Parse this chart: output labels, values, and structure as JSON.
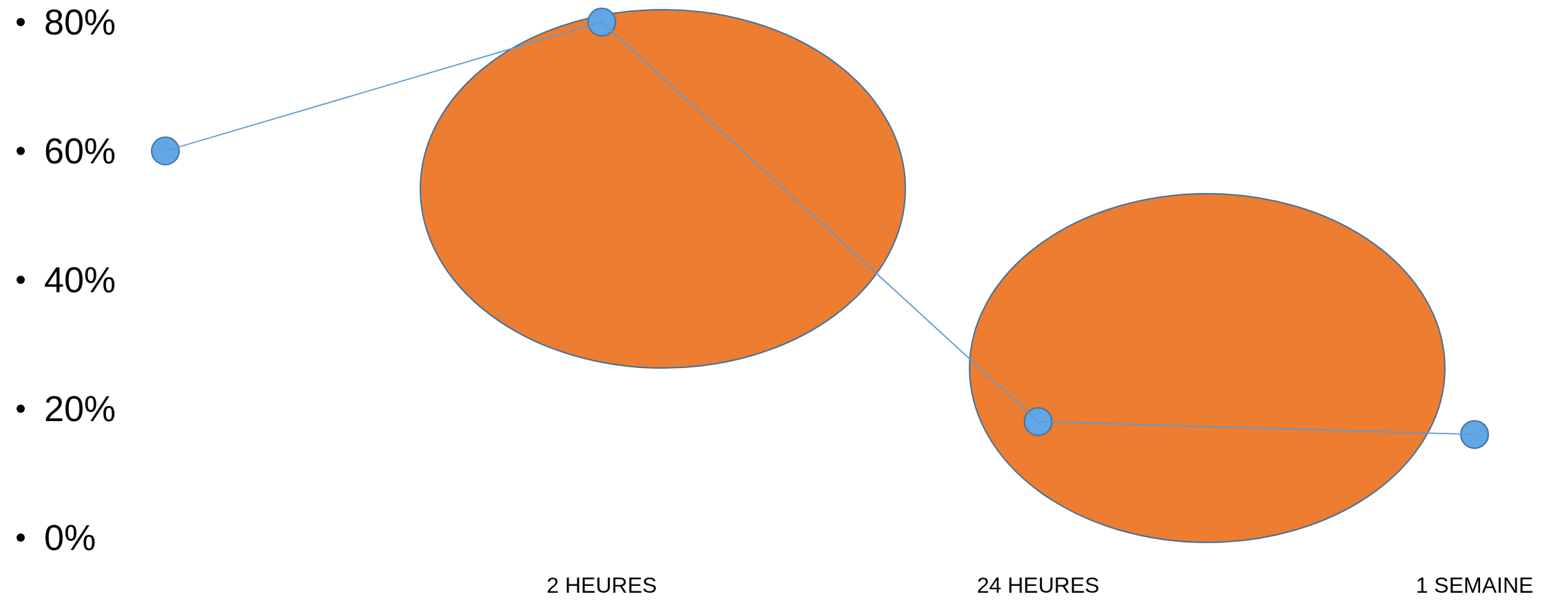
{
  "chart_data": {
    "type": "line",
    "categories": [
      null,
      "2 HEURES",
      "24 HEURES",
      "1 SEMAINE"
    ],
    "series": [
      {
        "color": "#5b9bd5",
        "values": [
          60,
          80,
          18,
          16
        ]
      }
    ],
    "ylim": [
      0,
      80
    ],
    "yticks": [
      {
        "value": 0,
        "label": "0%"
      },
      {
        "value": 20,
        "label": "20%"
      },
      {
        "value": 40,
        "label": "40%"
      },
      {
        "value": 60,
        "label": "60%"
      },
      {
        "value": 80,
        "label": "80%"
      }
    ],
    "marker": "circle",
    "grid": false
  }
}
